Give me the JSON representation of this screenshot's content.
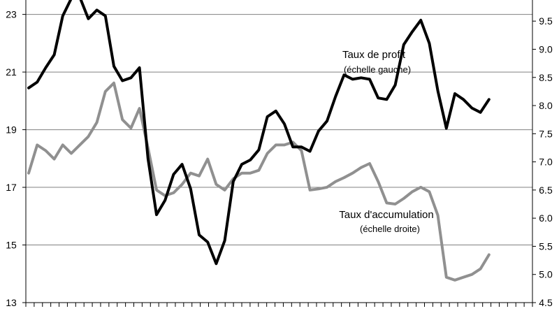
{
  "chart_data": {
    "type": "line",
    "title": "",
    "xlabel": "",
    "ylabel_left": "",
    "ylabel_right": "",
    "grid": "horizontal",
    "y_left": {
      "min": 13,
      "max": 23.5,
      "ticks": [
        "13",
        "15",
        "17",
        "19",
        "21",
        "23"
      ]
    },
    "y_right": {
      "min": 4.5,
      "max": 9.875,
      "ticks": [
        "4.5",
        "5.0",
        "5.5",
        "6.0",
        "6.5",
        "7.0",
        "7.5",
        "8.0",
        "8.5",
        "9.0",
        "9.5"
      ]
    },
    "x_count": 62,
    "annotations": [
      {
        "text": "Taux de profit",
        "sub": "(échelle gauche)"
      },
      {
        "text": "Taux d'accumulation",
        "sub": "(échelle droite)"
      }
    ],
    "series": [
      {
        "name": "Taux de profit",
        "axis": "left",
        "color": "#000000",
        "values": [
          20.45,
          20.65,
          21.15,
          21.6,
          22.95,
          23.55,
          23.6,
          22.85,
          23.15,
          22.95,
          21.2,
          20.7,
          20.8,
          21.15,
          18.0,
          16.05,
          16.55,
          17.45,
          17.8,
          16.95,
          15.35,
          15.1,
          14.35,
          15.15,
          17.2,
          17.8,
          17.95,
          18.3,
          19.45,
          19.65,
          19.2,
          18.4,
          18.4,
          18.25,
          18.95,
          19.3,
          20.15,
          20.9,
          20.75,
          20.8,
          20.75,
          20.1,
          20.05,
          20.55,
          21.95,
          22.4,
          22.8,
          22.0,
          20.35,
          19.05,
          20.25,
          20.05,
          19.75,
          19.6,
          20.05
        ]
      },
      {
        "name": "Taux d'accumulation",
        "axis": "right",
        "color": "#909090",
        "values": [
          6.8,
          7.3,
          7.2,
          7.05,
          7.3,
          7.15,
          7.3,
          7.45,
          7.7,
          8.25,
          8.4,
          7.75,
          7.6,
          7.95,
          7.25,
          6.5,
          6.4,
          6.45,
          6.6,
          6.8,
          6.75,
          7.05,
          6.6,
          6.5,
          6.7,
          6.8,
          6.8,
          6.85,
          7.15,
          7.3,
          7.3,
          7.35,
          7.2,
          6.5,
          6.52,
          6.55,
          6.65,
          6.72,
          6.8,
          6.9,
          6.97,
          6.65,
          6.27,
          6.25,
          6.35,
          6.47,
          6.55,
          6.47,
          6.05,
          4.95,
          4.9,
          4.95,
          5.0,
          5.1,
          5.35
        ]
      }
    ]
  }
}
